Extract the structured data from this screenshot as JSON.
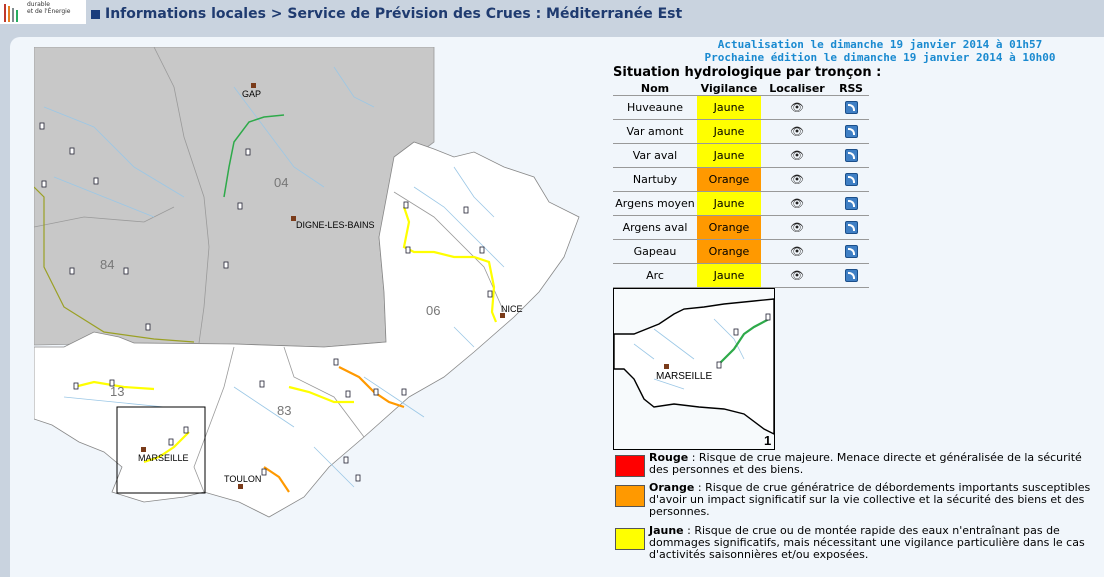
{
  "logo": {
    "line1": "durable",
    "line2": "et de l'Énergie"
  },
  "header": {
    "title": "Informations locales > Service de Prévision des Crues : Méditerranée Est"
  },
  "update": {
    "actualisation": "Actualisation le dimanche 19 janvier 2014 à 01h57",
    "prochaine": "Prochaine édition le dimanche 19 janvier 2014 à 10h00"
  },
  "table": {
    "title": "Situation hydrologique par tronçon :",
    "headers": [
      "Nom",
      "Vigilance",
      "Localiser",
      "RSS"
    ],
    "rows": [
      {
        "nom": "Huveaune",
        "vigilance": "Jaune"
      },
      {
        "nom": "Var amont",
        "vigilance": "Jaune"
      },
      {
        "nom": "Var aval",
        "vigilance": "Jaune"
      },
      {
        "nom": "Nartuby",
        "vigilance": "Orange"
      },
      {
        "nom": "Argens moyen",
        "vigilance": "Jaune"
      },
      {
        "nom": "Argens aval",
        "vigilance": "Orange"
      },
      {
        "nom": "Gapeau",
        "vigilance": "Orange"
      },
      {
        "nom": "Arc",
        "vigilance": "Jaune"
      }
    ]
  },
  "colors": {
    "jaune": "#ffff00",
    "orange": "#ff9900",
    "rouge": "#ff0000",
    "vert": "#2eaa4a",
    "gris": "#c8c8c8"
  },
  "map": {
    "cities": {
      "gap": "GAP",
      "digne": "DIGNE-LES-BAINS",
      "nice": "NICE",
      "marseille": "MARSEILLE",
      "toulon": "TOULON"
    },
    "departments": {
      "d04": "04",
      "d84": "84",
      "d06": "06",
      "d13": "13",
      "d83": "83"
    }
  },
  "inset": {
    "city": "MARSEILLE",
    "number": "1"
  },
  "legend": [
    {
      "label": "Rouge",
      "text": " : Risque de crue majeure. Menace directe et généralisée de la sécurité des personnes et des biens."
    },
    {
      "label": "Orange",
      "text": " : Risque de crue génératrice de débordements importants susceptibles d'avoir un impact significatif sur la vie collective et la sécurité des biens et des personnes."
    },
    {
      "label": "Jaune",
      "text": " : Risque de crue ou de montée rapide des eaux n'entraînant pas de dommages significatifs, mais nécessitant une vigilance particulière dans le cas d'activités saisonnières et/ou exposées."
    }
  ]
}
